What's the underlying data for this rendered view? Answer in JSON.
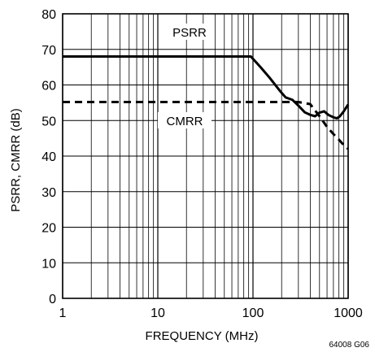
{
  "chart_data": {
    "type": "line",
    "xlabel": "FREQUENCY (MHz)",
    "ylabel": "PSRR, CMRR (dB)",
    "xscale": "log",
    "xlim": [
      1,
      1000
    ],
    "ylim": [
      0,
      80
    ],
    "grid": true,
    "x_ticks": [
      1,
      10,
      100,
      1000
    ],
    "x_tick_labels": [
      "1",
      "10",
      "100",
      "1000"
    ],
    "y_ticks": [
      0,
      10,
      20,
      30,
      40,
      50,
      60,
      70,
      80
    ],
    "y_tick_labels": [
      "0",
      "10",
      "20",
      "30",
      "40",
      "50",
      "60",
      "70",
      "80"
    ],
    "series": [
      {
        "name": "PSRR",
        "style": "solid",
        "x": [
          1,
          95,
          120,
          150,
          190,
          220,
          260,
          300,
          350,
          400,
          450,
          500,
          560,
          620,
          700,
          760,
          820,
          900,
          1000
        ],
        "y": [
          68,
          68,
          65,
          62,
          58.5,
          56.5,
          55.8,
          54.2,
          52.3,
          51.6,
          51.2,
          52.2,
          52.6,
          51.6,
          50.9,
          50.6,
          51.2,
          52.6,
          54.5
        ]
      },
      {
        "name": "CMRR",
        "style": "dashed",
        "x": [
          1,
          300,
          400,
          500,
          600,
          700,
          800,
          900,
          1000
        ],
        "y": [
          55.2,
          55.2,
          54.6,
          51.2,
          48.2,
          46.2,
          44.6,
          43.1,
          42
        ]
      }
    ],
    "annotations": [
      "64008 G06"
    ]
  }
}
